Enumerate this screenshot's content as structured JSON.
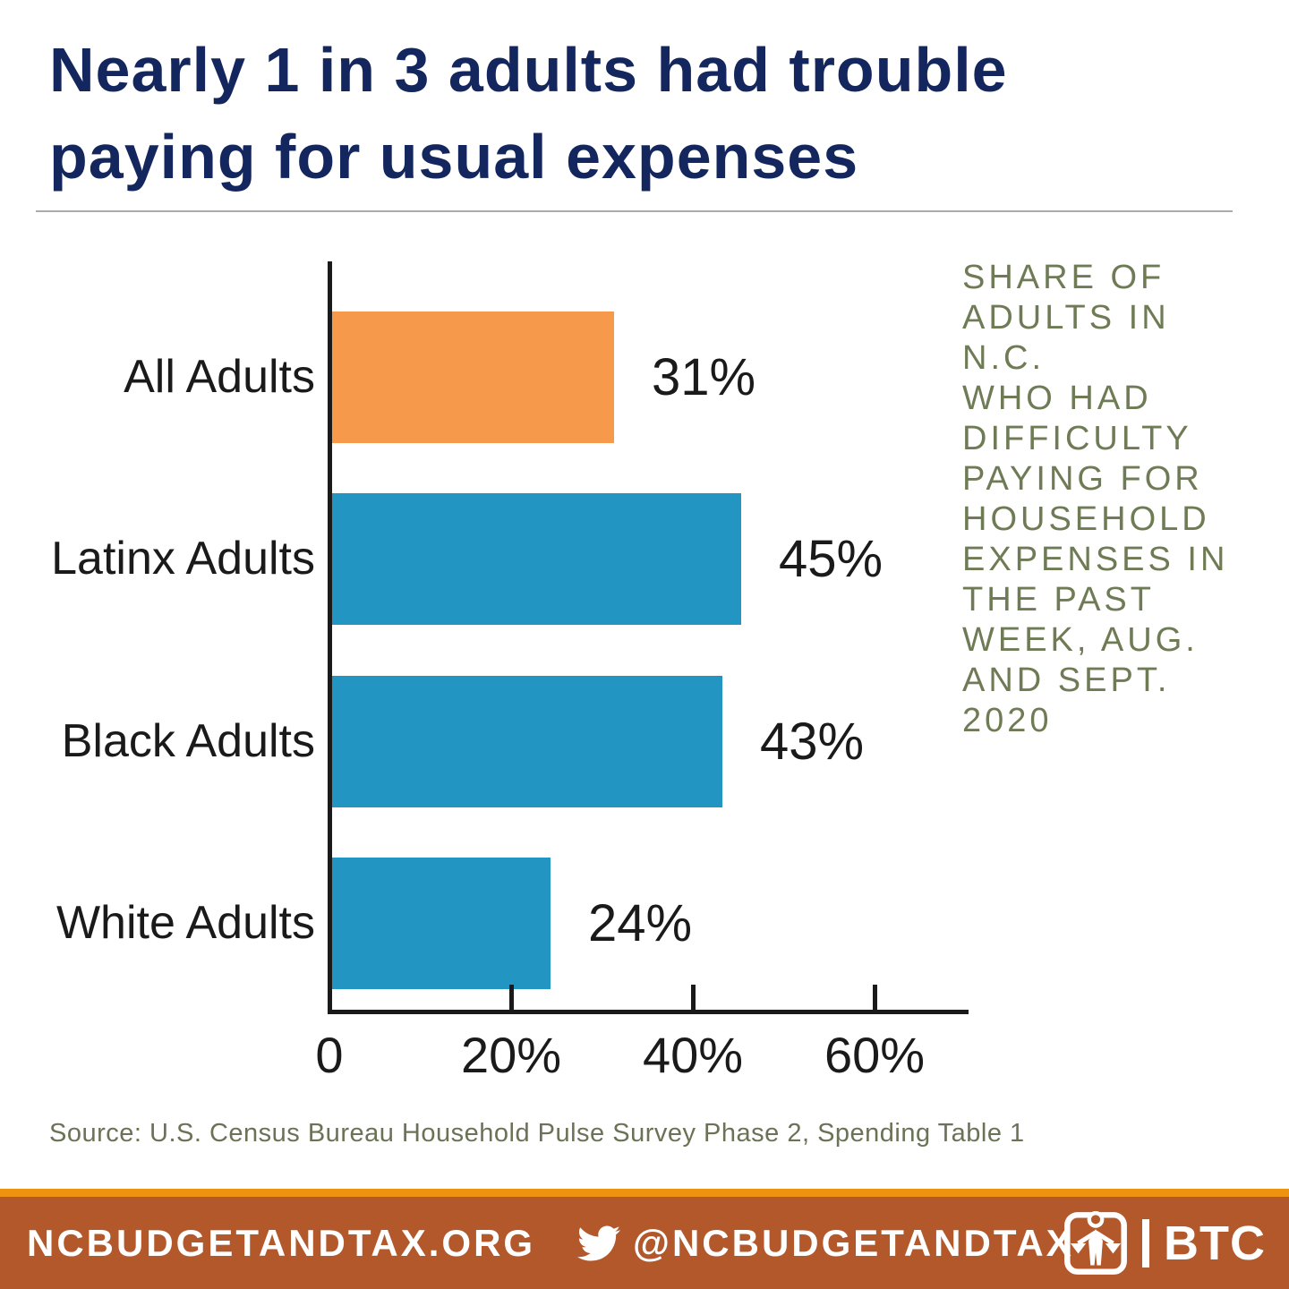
{
  "title": {
    "line1": "Nearly 1 in 3 adults had trouble",
    "line2": "paying for usual expenses",
    "color": "#14265E"
  },
  "chart_data": {
    "type": "bar",
    "orientation": "horizontal",
    "title": "Nearly 1 in 3 adults had trouble paying for usual expenses",
    "categories": [
      "All Adults",
      "Latinx Adults",
      "Black Adults",
      "White Adults"
    ],
    "values": [
      31,
      45,
      43,
      24
    ],
    "value_labels": [
      "31%",
      "45%",
      "43%",
      "24%"
    ],
    "bar_colors": [
      "#F6994B",
      "#2395C3",
      "#2395C3",
      "#2395C3"
    ],
    "x_ticks": [
      0,
      20,
      40,
      60
    ],
    "x_tick_labels": [
      "0",
      "20%",
      "40%",
      "60%"
    ],
    "xlim": [
      0,
      70
    ],
    "grid": false,
    "legend": false,
    "axis_color": "#1A1A1A",
    "annotation": "SHARE OF\nADULTS IN N.C.\nWHO HAD\nDIFFICULTY\nPAYING FOR\nHOUSEHOLD\nEXPENSES IN\nTHE PAST\nWEEK, AUG.\nAND SEPT.\n2020",
    "annotation_color": "#6E7B55"
  },
  "source": {
    "text": "Source: U.S. Census Bureau Household Pulse Survey Phase 2, Spending Table 1",
    "color": "#6B7255"
  },
  "footer": {
    "website": "NCBUDGETANDTAX.ORG",
    "twitter_handle": "@NCBUDGETANDTAX",
    "logo_text": "BTC",
    "bar_color": "#B2582A",
    "accent_line_color": "#EE9210",
    "text_color": "#FFFFFF"
  }
}
